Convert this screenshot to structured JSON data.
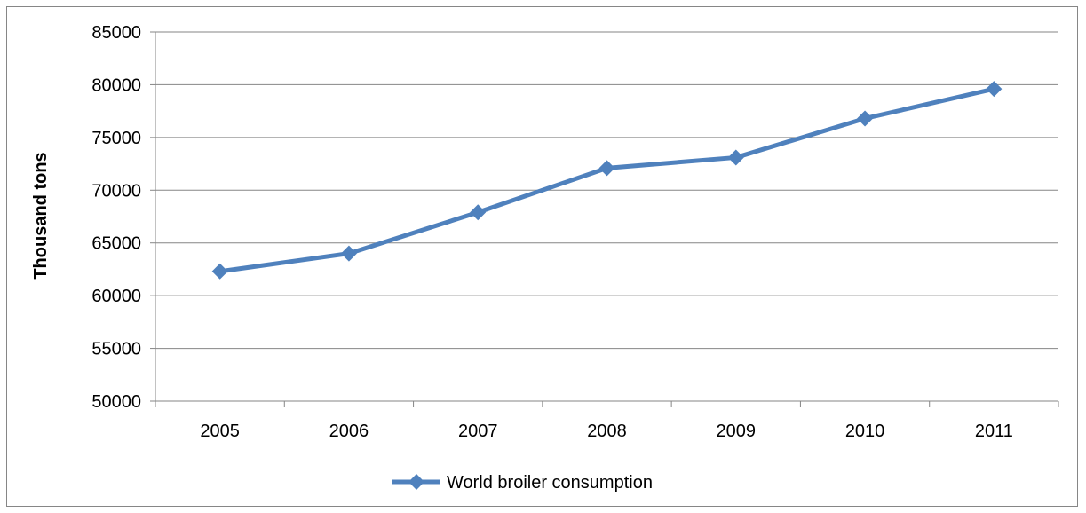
{
  "chart_data": {
    "type": "line",
    "title": "",
    "xlabel": "",
    "ylabel": "Thousand tons",
    "categories": [
      "2005",
      "2006",
      "2007",
      "2008",
      "2009",
      "2010",
      "2011"
    ],
    "series": [
      {
        "name": "World broiler consumption",
        "values": [
          62300,
          64000,
          67900,
          72100,
          73100,
          76800,
          79600
        ],
        "color": "#4F81BD",
        "marker": "diamond"
      }
    ],
    "ylim": [
      50000,
      85000
    ],
    "yticks": [
      "50000",
      "55000",
      "60000",
      "65000",
      "70000",
      "75000",
      "80000",
      "85000"
    ],
    "grid": true,
    "legend_position": "bottom",
    "colors": {
      "gridline": "#868686",
      "axis": "#868686",
      "frame": "#868686"
    }
  }
}
